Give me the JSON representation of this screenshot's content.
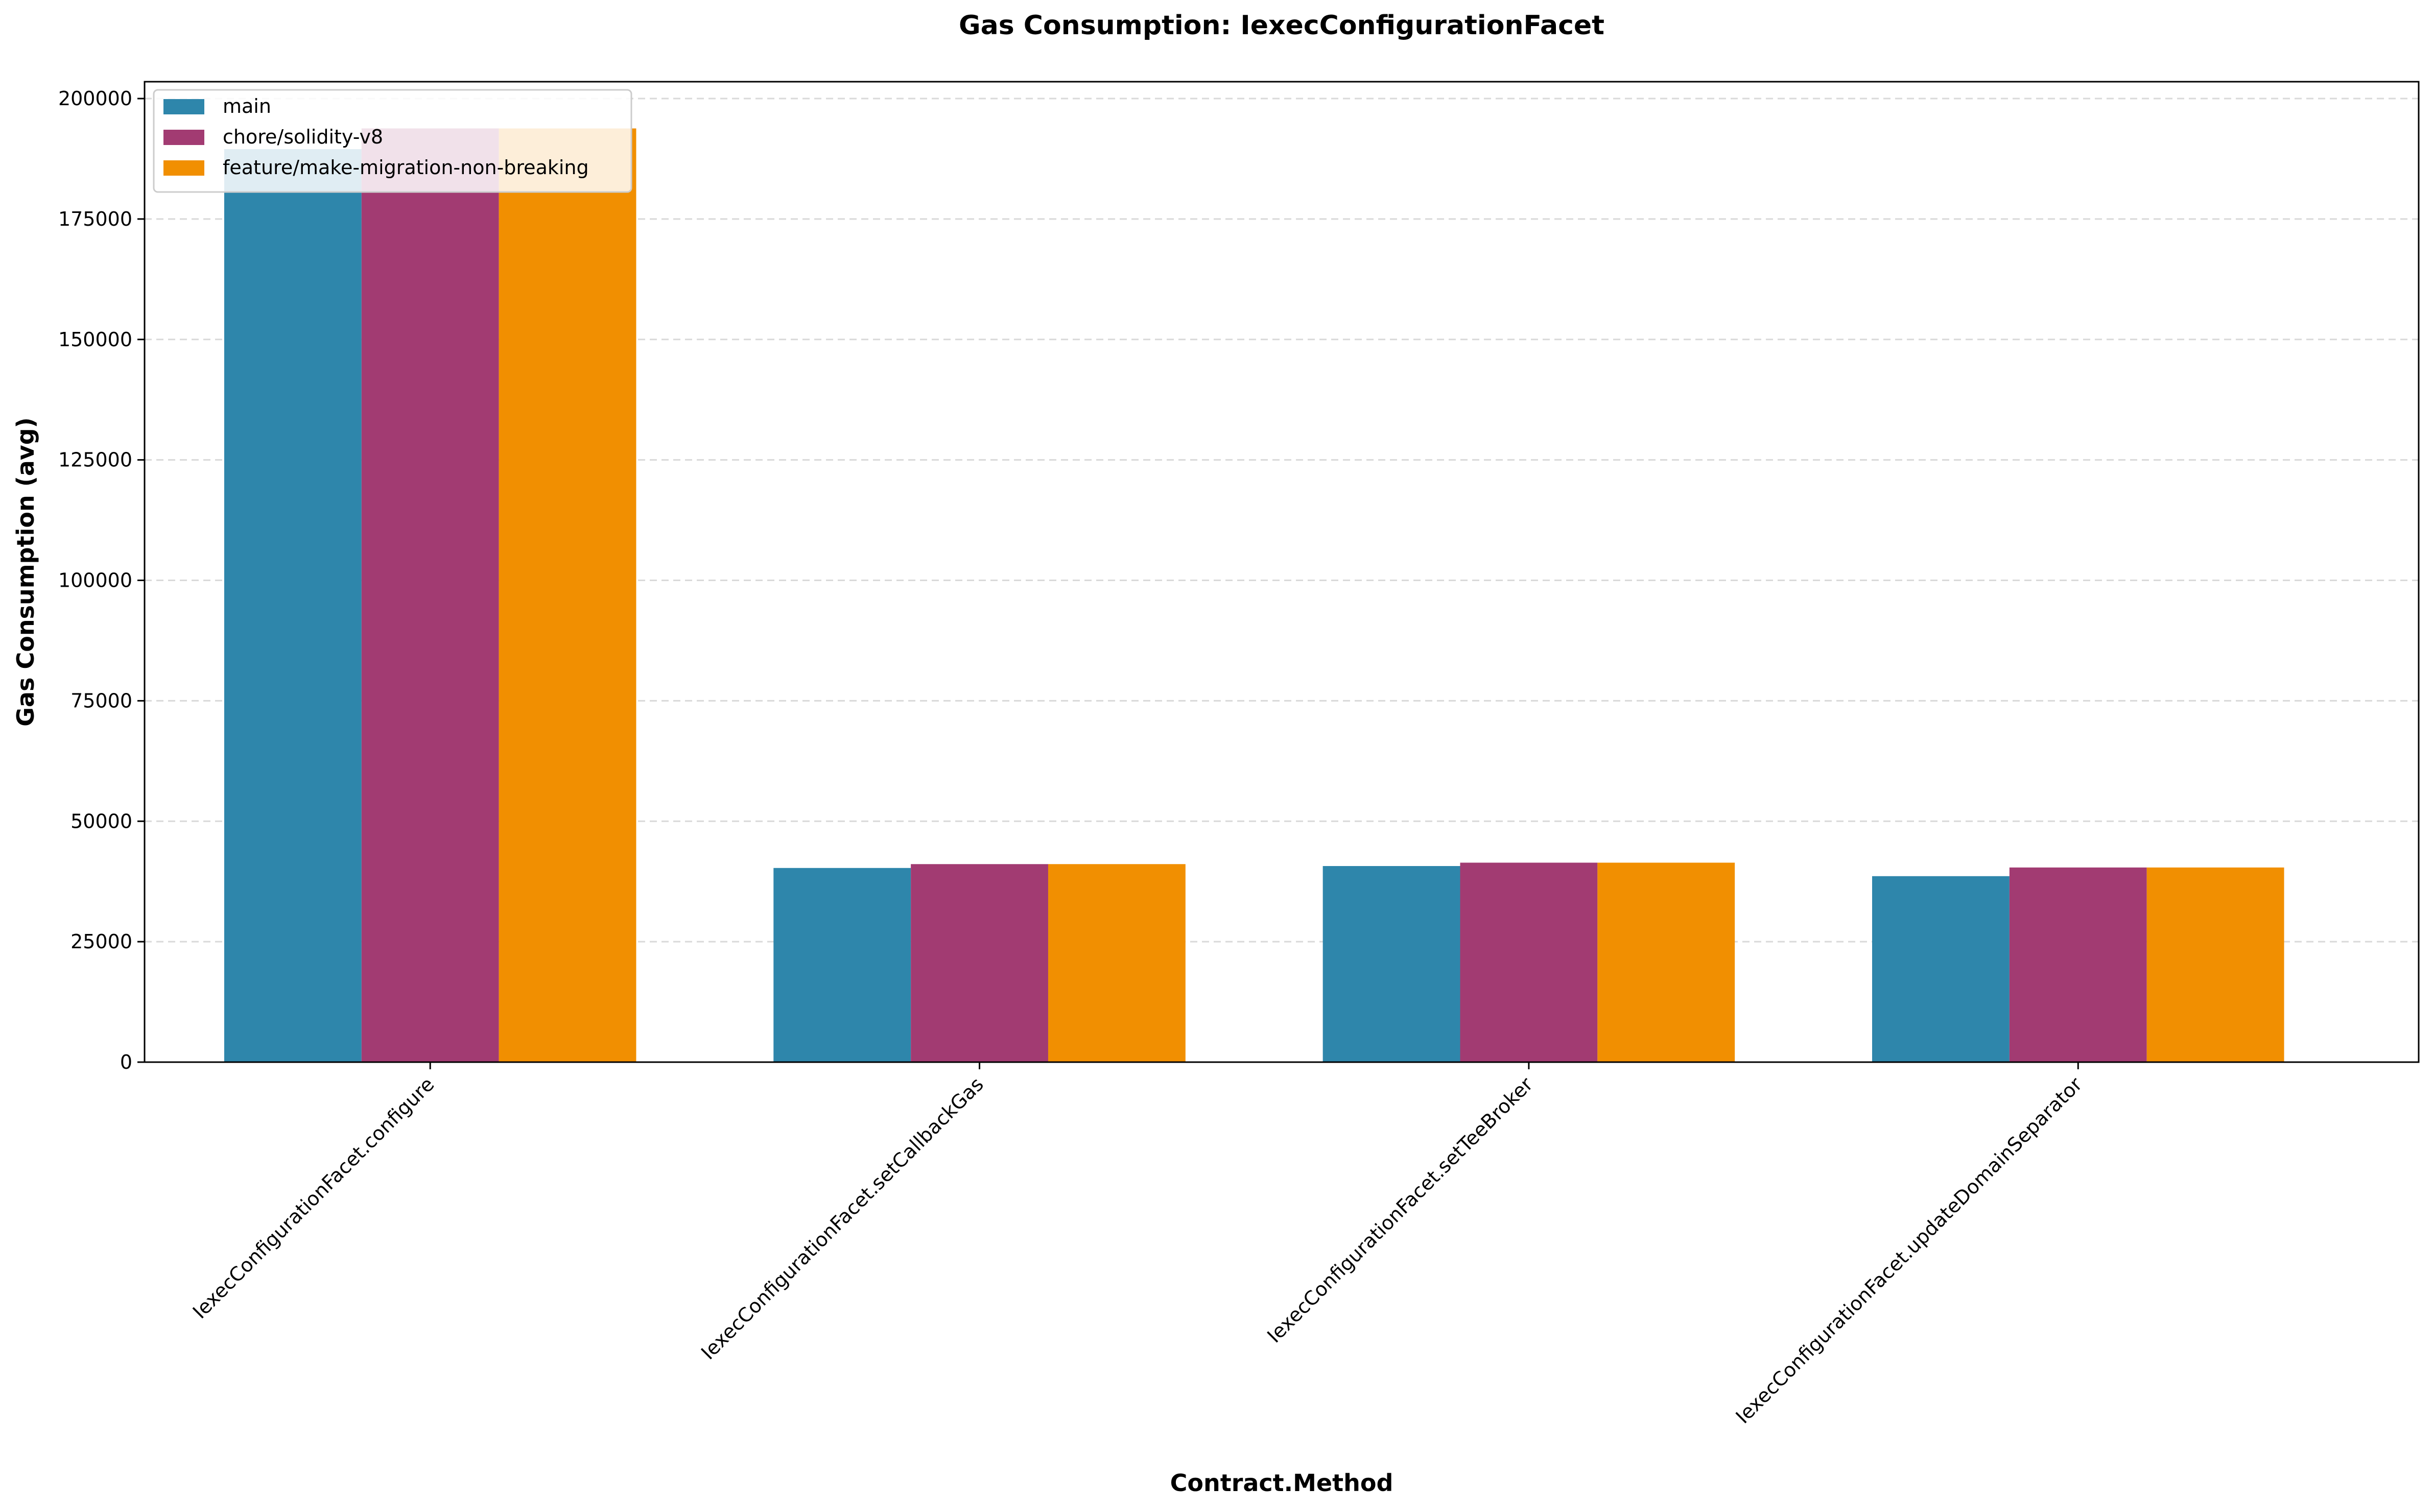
{
  "chart_data": {
    "type": "bar",
    "title": "Gas Consumption: IexecConfigurationFacet",
    "xlabel": "Contract.Method",
    "ylabel": "Gas Consumption (avg)",
    "categories": [
      "IexecConfigurationFacet.configure",
      "IexecConfigurationFacet.setCallbackGas",
      "IexecConfigurationFacet.setTeeBroker",
      "IexecConfigurationFacet.updateDomainSeparator"
    ],
    "series": [
      {
        "name": "main",
        "color": "#2e86ab",
        "values": [
          189500,
          40300,
          40700,
          38600
        ]
      },
      {
        "name": "chore/solidity-v8",
        "color": "#a23b72",
        "values": [
          193800,
          41100,
          41400,
          40400
        ]
      },
      {
        "name": "feature/make-migration-non-breaking",
        "color": "#f18f01",
        "values": [
          193800,
          41100,
          41400,
          40400
        ]
      }
    ],
    "ylim": [
      0,
      203500
    ],
    "yticks": [
      0,
      25000,
      50000,
      75000,
      100000,
      125000,
      150000,
      175000,
      200000
    ],
    "ytick_labels": [
      "0",
      "25000",
      "50000",
      "75000",
      "100000",
      "125000",
      "150000",
      "175000",
      "200000"
    ],
    "grid": "y, dashed",
    "legend_position": "top-left"
  }
}
